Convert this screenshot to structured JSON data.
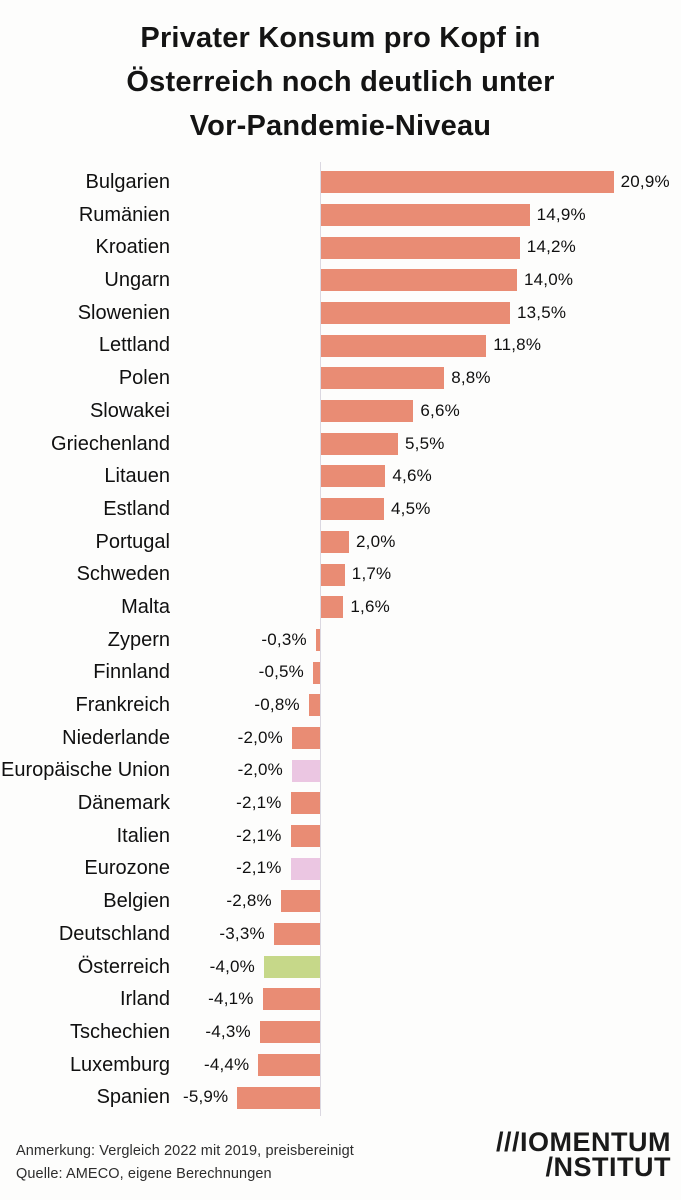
{
  "title": {
    "lines": [
      "Privater Konsum pro Kopf in",
      "Österreich noch deutlich unter",
      "Vor-Pandemie-Niveau"
    ]
  },
  "chart_data": {
    "type": "bar",
    "orientation": "horizontal",
    "title": "Privater Konsum pro Kopf in Österreich noch deutlich unter Vor-Pandemie-Niveau",
    "xlabel": "",
    "ylabel": "",
    "unit": "%",
    "xlim": [
      -6,
      21
    ],
    "grid": false,
    "legend": "none",
    "categories": [
      "Bulgarien",
      "Rumänien",
      "Kroatien",
      "Ungarn",
      "Slowenien",
      "Lettland",
      "Polen",
      "Slowakei",
      "Griechenland",
      "Litauen",
      "Estland",
      "Portugal",
      "Schweden",
      "Malta",
      "Zypern",
      "Finnland",
      "Frankreich",
      "Niederlande",
      "Europäische Union",
      "Dänemark",
      "Italien",
      "Eurozone",
      "Belgien",
      "Deutschland",
      "Österreich",
      "Irland",
      "Tschechien",
      "Luxemburg",
      "Spanien"
    ],
    "values": [
      20.9,
      14.9,
      14.2,
      14.0,
      13.5,
      11.8,
      8.8,
      6.6,
      5.5,
      4.6,
      4.5,
      2.0,
      1.7,
      1.6,
      -0.3,
      -0.5,
      -0.8,
      -2.0,
      -2.0,
      -2.1,
      -2.1,
      -2.1,
      -2.8,
      -3.3,
      -4.0,
      -4.1,
      -4.3,
      -4.4,
      -5.9
    ],
    "display_values": [
      "20,9%",
      "14,9%",
      "14,2%",
      "14,0%",
      "13,5%",
      "11,8%",
      "8,8%",
      "6,6%",
      "5,5%",
      "4,6%",
      "4,5%",
      "2,0%",
      "1,7%",
      "1,6%",
      "-0,3%",
      "-0,5%",
      "-0,8%",
      "-2,0%",
      "-2,0%",
      "-2,1%",
      "-2,1%",
      "-2,1%",
      "-2,8%",
      "-3,3%",
      "-4,0%",
      "-4,1%",
      "-4,3%",
      "-4,4%",
      "-5,9%"
    ],
    "bar_color_keys": [
      "default",
      "default",
      "default",
      "default",
      "default",
      "default",
      "default",
      "default",
      "default",
      "default",
      "default",
      "default",
      "default",
      "default",
      "default",
      "default",
      "default",
      "default",
      "aggregate",
      "default",
      "default",
      "aggregate",
      "default",
      "default",
      "austria",
      "default",
      "default",
      "default",
      "default"
    ],
    "colors": {
      "default": "#E98C74",
      "aggregate": "#EBC6E2",
      "austria": "#C6D889",
      "axis": "#DBD8E1"
    }
  },
  "footer": {
    "note": "Anmerkung: Vergleich 2022 mit 2019, preisbereinigt",
    "source": "Quelle: AMECO, eigene Berechnungen",
    "logo_line1": "///IOMENTUM",
    "logo_line2": "/NSTITUT"
  }
}
